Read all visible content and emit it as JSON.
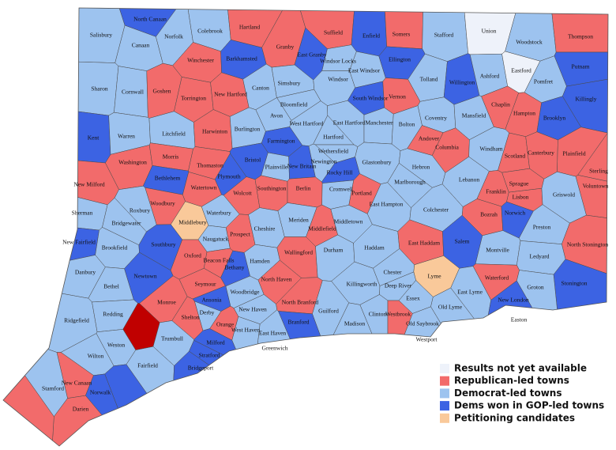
{
  "towns": [
    {
      "name": "North Canaan",
      "color": "#3c63e3"
    },
    {
      "name": "Salisbury",
      "color": "#9dc3ef"
    },
    {
      "name": "Canaan",
      "color": "#9dc3ef"
    },
    {
      "name": "Norfolk",
      "color": "#9dc3ef"
    },
    {
      "name": "Colebrook",
      "color": "#9dc3ef"
    },
    {
      "name": "Hartland",
      "color": "#f26b6b"
    },
    {
      "name": "Granby",
      "color": "#f26b6b"
    },
    {
      "name": "Suffield",
      "color": "#f26b6b"
    },
    {
      "name": "Enfield",
      "color": "#3c63e3"
    },
    {
      "name": "Somers",
      "color": "#f26b6b"
    },
    {
      "name": "Stafford",
      "color": "#9dc3ef"
    },
    {
      "name": "Union",
      "color": "#eef2fa"
    },
    {
      "name": "Woodstock",
      "color": "#9dc3ef"
    },
    {
      "name": "Thompson",
      "color": "#f26b6b"
    },
    {
      "name": "Winchester",
      "color": "#f26b6b"
    },
    {
      "name": "Barkhamsted",
      "color": "#3c63e3"
    },
    {
      "name": "East Granby",
      "color": "#3c63e3"
    },
    {
      "name": "Windsor Locks",
      "color": "#9dc3ef"
    },
    {
      "name": "East Windsor",
      "color": "#9dc3ef"
    },
    {
      "name": "Ellington",
      "color": "#3c63e3"
    },
    {
      "name": "Putnam",
      "color": "#3c63e3"
    },
    {
      "name": "Sharon",
      "color": "#9dc3ef"
    },
    {
      "name": "Cornwall",
      "color": "#9dc3ef"
    },
    {
      "name": "Goshen",
      "color": "#f26b6b"
    },
    {
      "name": "Torrington",
      "color": "#f26b6b"
    },
    {
      "name": "New Hartford",
      "color": "#f26b6b"
    },
    {
      "name": "Canton",
      "color": "#9dc3ef"
    },
    {
      "name": "Simsbury",
      "color": "#9dc3ef"
    },
    {
      "name": "Windsor",
      "color": "#9dc3ef"
    },
    {
      "name": "Tolland",
      "color": "#9dc3ef"
    },
    {
      "name": "Willington",
      "color": "#3c63e3"
    },
    {
      "name": "Ashford",
      "color": "#9dc3ef"
    },
    {
      "name": "Eastford",
      "color": "#eef2fa"
    },
    {
      "name": "Pomfret",
      "color": "#9dc3ef"
    },
    {
      "name": "Killingly",
      "color": "#3c63e3"
    },
    {
      "name": "Bloomfield",
      "color": "#9dc3ef"
    },
    {
      "name": "South Windsor",
      "color": "#3c63e3"
    },
    {
      "name": "Vernon",
      "color": "#f26b6b"
    },
    {
      "name": "Avon",
      "color": "#9dc3ef"
    },
    {
      "name": "West Hartford",
      "color": "#9dc3ef"
    },
    {
      "name": "East Hartford",
      "color": "#9dc3ef"
    },
    {
      "name": "Manchester",
      "color": "#9dc3ef"
    },
    {
      "name": "Bolton",
      "color": "#9dc3ef"
    },
    {
      "name": "Coventry",
      "color": "#9dc3ef"
    },
    {
      "name": "Mansfield",
      "color": "#9dc3ef"
    },
    {
      "name": "Chaplin",
      "color": "#f26b6b"
    },
    {
      "name": "Hampton",
      "color": "#f26b6b"
    },
    {
      "name": "Brooklyn",
      "color": "#3c63e3"
    },
    {
      "name": "Kent",
      "color": "#3c63e3"
    },
    {
      "name": "Warren",
      "color": "#9dc3ef"
    },
    {
      "name": "Litchfield",
      "color": "#9dc3ef"
    },
    {
      "name": "Harwinton",
      "color": "#f26b6b"
    },
    {
      "name": "Burlington",
      "color": "#9dc3ef"
    },
    {
      "name": "Farmington",
      "color": "#3c63e3"
    },
    {
      "name": "Hartford",
      "color": "#9dc3ef"
    },
    {
      "name": "Wethersfield",
      "color": "#9dc3ef"
    },
    {
      "name": "Andover",
      "color": "#f26b6b"
    },
    {
      "name": "Columbia",
      "color": "#f26b6b"
    },
    {
      "name": "Windham",
      "color": "#9dc3ef"
    },
    {
      "name": "Scotland",
      "color": "#f26b6b"
    },
    {
      "name": "Canterbury",
      "color": "#f26b6b"
    },
    {
      "name": "Plainfield",
      "color": "#f26b6b"
    },
    {
      "name": "Washington",
      "color": "#f26b6b"
    },
    {
      "name": "Morris",
      "color": "#f26b6b"
    },
    {
      "name": "Thomaston",
      "color": "#f26b6b"
    },
    {
      "name": "Bristol",
      "color": "#3c63e3"
    },
    {
      "name": "Plainville",
      "color": "#9dc3ef"
    },
    {
      "name": "New Britain",
      "color": "#3c63e3"
    },
    {
      "name": "Newington",
      "color": "#9dc3ef"
    },
    {
      "name": "Glastonbury",
      "color": "#9dc3ef"
    },
    {
      "name": "Hebron",
      "color": "#9dc3ef"
    },
    {
      "name": "Sterling",
      "color": "#f26b6b"
    },
    {
      "name": "Bethlehem",
      "color": "#3c63e3"
    },
    {
      "name": "Plymouth",
      "color": "#3c63e3"
    },
    {
      "name": "Rocky Hill",
      "color": "#3c63e3"
    },
    {
      "name": "Voluntown",
      "color": "#f26b6b"
    },
    {
      "name": "New Milford",
      "color": "#f26b6b"
    },
    {
      "name": "Watertown",
      "color": "#f26b6b"
    },
    {
      "name": "Wolcott",
      "color": "#f26b6b"
    },
    {
      "name": "Southington",
      "color": "#f26b6b"
    },
    {
      "name": "Berlin",
      "color": "#f26b6b"
    },
    {
      "name": "Cromwell",
      "color": "#9dc3ef"
    },
    {
      "name": "Marlborough",
      "color": "#9dc3ef"
    },
    {
      "name": "Lebanon",
      "color": "#9dc3ef"
    },
    {
      "name": "Franklin",
      "color": "#f26b6b"
    },
    {
      "name": "Sprague",
      "color": "#f26b6b"
    },
    {
      "name": "Lisbon",
      "color": "#f26b6b"
    },
    {
      "name": "Griswold",
      "color": "#9dc3ef"
    },
    {
      "name": "Woodbury",
      "color": "#f26b6b"
    },
    {
      "name": "Roxbury",
      "color": "#9dc3ef"
    },
    {
      "name": "Portland",
      "color": "#f26b6b"
    },
    {
      "name": "East Hampton",
      "color": "#9dc3ef"
    },
    {
      "name": "Colchester",
      "color": "#9dc3ef"
    },
    {
      "name": "Bozrah",
      "color": "#f26b6b"
    },
    {
      "name": "Norwich",
      "color": "#3c63e3"
    },
    {
      "name": "Sherman",
      "color": "#9dc3ef"
    },
    {
      "name": "Waterbury",
      "color": "#9dc3ef"
    },
    {
      "name": "Middlebury",
      "color": "#f9c99a"
    },
    {
      "name": "Cheshire",
      "color": "#9dc3ef"
    },
    {
      "name": "Meriden",
      "color": "#9dc3ef"
    },
    {
      "name": "Middletown",
      "color": "#9dc3ef"
    },
    {
      "name": "Bridgewater",
      "color": "#9dc3ef"
    },
    {
      "name": "Prospect",
      "color": "#f26b6b"
    },
    {
      "name": "Middlefield",
      "color": "#f26b6b"
    },
    {
      "name": "Preston",
      "color": "#9dc3ef"
    },
    {
      "name": "Naugatuck",
      "color": "#9dc3ef"
    },
    {
      "name": "New Fairfield",
      "color": "#3c63e3"
    },
    {
      "name": "Brookfield",
      "color": "#9dc3ef"
    },
    {
      "name": "Southbury",
      "color": "#3c63e3"
    },
    {
      "name": "Wallingford",
      "color": "#f26b6b"
    },
    {
      "name": "Durham",
      "color": "#9dc3ef"
    },
    {
      "name": "Haddam",
      "color": "#9dc3ef"
    },
    {
      "name": "East Haddam",
      "color": "#f26b6b"
    },
    {
      "name": "Salem",
      "color": "#3c63e3"
    },
    {
      "name": "Montville",
      "color": "#9dc3ef"
    },
    {
      "name": "North Stonington",
      "color": "#f26b6b"
    },
    {
      "name": "Oxford",
      "color": "#f26b6b"
    },
    {
      "name": "Beacon Falls",
      "color": "#f26b6b"
    },
    {
      "name": "Hamden",
      "color": "#9dc3ef"
    },
    {
      "name": "Ledyard",
      "color": "#9dc3ef"
    },
    {
      "name": "Danbury",
      "color": "#9dc3ef"
    },
    {
      "name": "Bethany",
      "color": "#3c63e3"
    },
    {
      "name": "Chester",
      "color": "#9dc3ef"
    },
    {
      "name": "Lyme",
      "color": "#f9c99a"
    },
    {
      "name": "Newtown",
      "color": "#3c63e3"
    },
    {
      "name": "Seymour",
      "color": "#f26b6b"
    },
    {
      "name": "North Haven",
      "color": "#f26b6b"
    },
    {
      "name": "Killingworth",
      "color": "#9dc3ef"
    },
    {
      "name": "Deep River",
      "color": "#9dc3ef"
    },
    {
      "name": "Stonington",
      "color": "#3c63e3"
    },
    {
      "name": "Bethel",
      "color": "#9dc3ef"
    },
    {
      "name": "Woodbridge",
      "color": "#9dc3ef"
    },
    {
      "name": "Groton",
      "color": "#9dc3ef"
    },
    {
      "name": "Essex",
      "color": "#9dc3ef"
    },
    {
      "name": "East Lyme",
      "color": "#9dc3ef"
    },
    {
      "name": "Ansonia",
      "color": "#3c63e3"
    },
    {
      "name": "Monroe",
      "color": "#f26b6b"
    },
    {
      "name": "North Branford",
      "color": "#f26b6b"
    },
    {
      "name": "Waterford",
      "color": "#f26b6b"
    },
    {
      "name": "New London",
      "color": "#3c63e3"
    },
    {
      "name": "Ridgefield",
      "color": "#9dc3ef"
    },
    {
      "name": "Redding",
      "color": "#9dc3ef"
    },
    {
      "name": "Derby",
      "color": "#9dc3ef"
    },
    {
      "name": "Guilford",
      "color": "#9dc3ef"
    },
    {
      "name": "Clinton",
      "color": "#9dc3ef"
    },
    {
      "name": "Westbrook",
      "color": "#f26b6b"
    },
    {
      "name": "Old Lyme",
      "color": "#9dc3ef"
    },
    {
      "name": "Shelton",
      "color": "#f26b6b"
    },
    {
      "name": "New Haven",
      "color": "#9dc3ef"
    },
    {
      "name": "Easton",
      "color": "#c00000"
    },
    {
      "name": "Orange",
      "color": "#f26b6b"
    },
    {
      "name": "West Haven",
      "color": "#9dc3ef"
    },
    {
      "name": "Branford",
      "color": "#3c63e3"
    },
    {
      "name": "Madison",
      "color": "#9dc3ef"
    },
    {
      "name": "Old Saybrook",
      "color": "#9dc3ef"
    },
    {
      "name": "Trumbull",
      "color": "#9dc3ef"
    },
    {
      "name": "Weston",
      "color": "#9dc3ef"
    },
    {
      "name": "Milford",
      "color": "#3c63e3"
    },
    {
      "name": "East Haven",
      "color": "#9dc3ef"
    },
    {
      "name": "Wilton",
      "color": "#9dc3ef"
    },
    {
      "name": "Fairfield",
      "color": "#9dc3ef"
    },
    {
      "name": "Stratford",
      "color": "#3c63e3"
    },
    {
      "name": "Bridgeport",
      "color": "#3c63e3"
    },
    {
      "name": "New Canaan",
      "color": "#f26b6b"
    },
    {
      "name": "Westport",
      "color": "#3c63e3"
    },
    {
      "name": "Stamford",
      "color": "#9dc3ef"
    },
    {
      "name": "Norwalk",
      "color": "#3c63e3"
    },
    {
      "name": "Darien",
      "color": "#f26b6b"
    },
    {
      "name": "Greenwich",
      "color": "#f26b6b"
    }
  ],
  "legend": [
    {
      "label": "Results not yet available",
      "color": "#eef2fa"
    },
    {
      "label": "Republican-led towns",
      "color": "#f26b6b"
    },
    {
      "label": "Democrat-led towns",
      "color": "#9dc3ef"
    },
    {
      "label": "Dems won in GOP-led towns",
      "color": "#3c63e3"
    },
    {
      "label": "Petitioning candidates",
      "color": "#f9c99a"
    }
  ]
}
